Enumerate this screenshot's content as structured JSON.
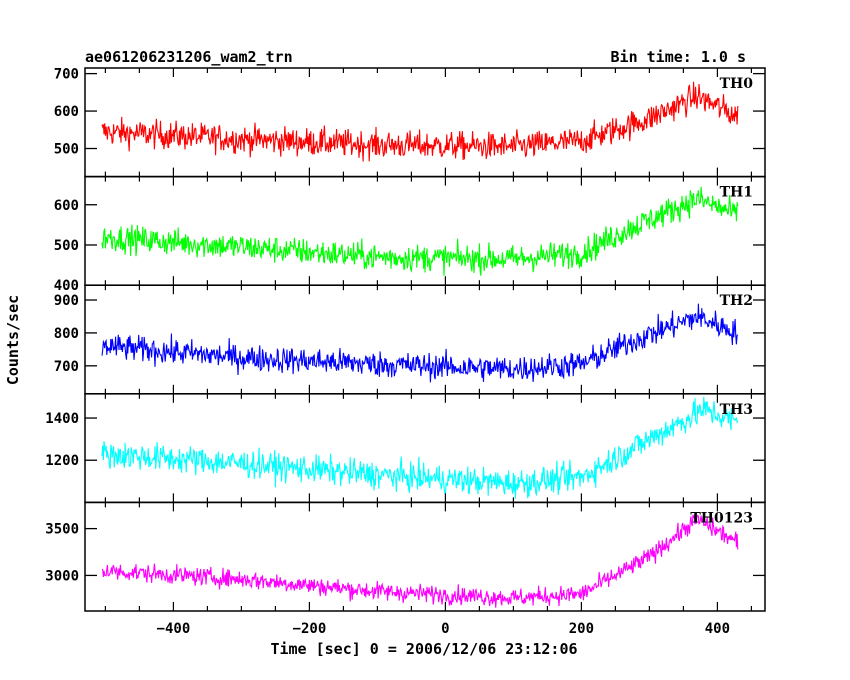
{
  "header": {
    "title": "ae061206231206_wam2_trn",
    "bin_time": "Bin time: 1.0 s"
  },
  "chart_data": {
    "type": "line",
    "xlabel": "Time [sec] 0 = 2006/12/06 23:12:06",
    "ylabel": "Counts/sec",
    "xlim": [
      -530,
      470
    ],
    "x_ticks": [
      -400,
      -200,
      0,
      200,
      400
    ],
    "x_tick_labels": [
      "−400",
      "−200",
      "0",
      "200",
      "400"
    ],
    "x_data_range": [
      -505,
      430
    ],
    "grid": false,
    "panels": [
      {
        "name": "TH0",
        "color": "#ff0000",
        "ylim": [
          425,
          715
        ],
        "ticks": [
          500,
          600,
          700
        ],
        "noise": 42,
        "trend": [
          [
            -505,
            545
          ],
          [
            -300,
            525
          ],
          [
            -100,
            510
          ],
          [
            100,
            505
          ],
          [
            200,
            520
          ],
          [
            300,
            580
          ],
          [
            370,
            640
          ],
          [
            430,
            585
          ]
        ]
      },
      {
        "name": "TH1",
        "color": "#00ff00",
        "ylim": [
          400,
          670
        ],
        "ticks": [
          400,
          500,
          600
        ],
        "noise": 38,
        "trend": [
          [
            -505,
            520
          ],
          [
            -300,
            495
          ],
          [
            -100,
            470
          ],
          [
            100,
            465
          ],
          [
            200,
            480
          ],
          [
            270,
            540
          ],
          [
            370,
            615
          ],
          [
            430,
            575
          ]
        ]
      },
      {
        "name": "TH2",
        "color": "#0000ff",
        "ylim": [
          615,
          945
        ],
        "ticks": [
          700,
          800,
          900
        ],
        "noise": 45,
        "trend": [
          [
            -505,
            760
          ],
          [
            -300,
            725
          ],
          [
            -100,
            705
          ],
          [
            100,
            690
          ],
          [
            200,
            705
          ],
          [
            280,
            780
          ],
          [
            370,
            850
          ],
          [
            430,
            800
          ]
        ]
      },
      {
        "name": "TH3",
        "color": "#00ffff",
        "ylim": [
          1000,
          1515
        ],
        "ticks": [
          1200,
          1400
        ],
        "noise": 75,
        "trend": [
          [
            -505,
            1230
          ],
          [
            -300,
            1185
          ],
          [
            -100,
            1130
          ],
          [
            100,
            1090
          ],
          [
            200,
            1120
          ],
          [
            300,
            1300
          ],
          [
            380,
            1440
          ],
          [
            430,
            1380
          ]
        ]
      },
      {
        "name": "TH0123",
        "color": "#ff00ff",
        "ylim": [
          2620,
          3780
        ],
        "ticks": [
          3000,
          3500
        ],
        "noise": 110,
        "trend": [
          [
            -505,
            3050
          ],
          [
            -300,
            2960
          ],
          [
            -100,
            2830
          ],
          [
            100,
            2760
          ],
          [
            200,
            2800
          ],
          [
            300,
            3200
          ],
          [
            370,
            3600
          ],
          [
            430,
            3350
          ]
        ]
      }
    ]
  }
}
